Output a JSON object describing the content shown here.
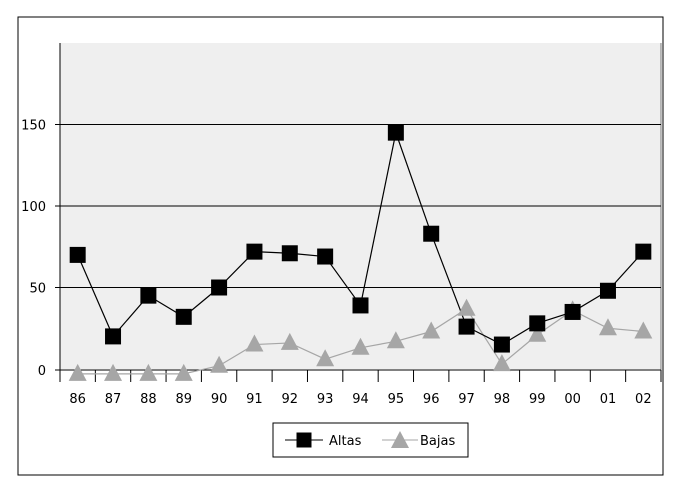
{
  "chart_data": {
    "type": "line",
    "title": "",
    "xlabel": "",
    "ylabel": "",
    "categories": [
      "86",
      "87",
      "88",
      "89",
      "90",
      "91",
      "92",
      "93",
      "94",
      "95",
      "96",
      "97",
      "98",
      "99",
      "00",
      "01",
      "02"
    ],
    "ylim": [
      0,
      200
    ],
    "yticks": [
      0,
      50,
      100,
      150
    ],
    "grid": true,
    "legend": "bottom-center",
    "series": [
      {
        "name": "Altas",
        "values": [
          70,
          20,
          45,
          32,
          50,
          72,
          71,
          69,
          39,
          145,
          83,
          26,
          15,
          28,
          35,
          48,
          72
        ],
        "color": "#000000",
        "marker": "square"
      },
      {
        "name": "Bajas",
        "values": [
          -3,
          -3,
          -3,
          -3,
          2,
          15,
          16,
          6,
          13,
          17,
          23,
          37,
          3,
          21,
          36,
          25,
          23
        ],
        "color": "#a6a6a6",
        "marker": "triangle"
      }
    ]
  }
}
